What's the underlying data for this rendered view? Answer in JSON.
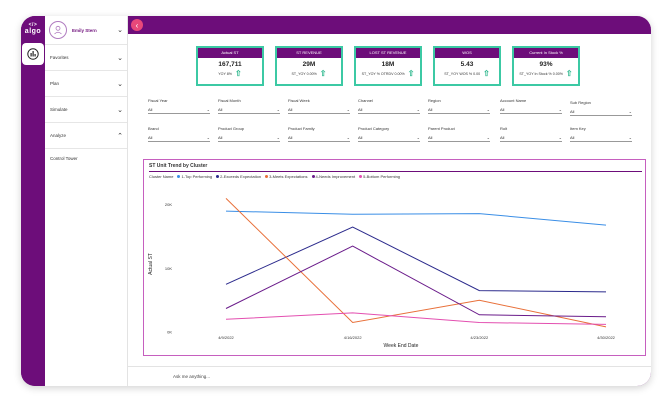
{
  "app": {
    "logo": "algo"
  },
  "user": {
    "name": "Emily Stern"
  },
  "sidebar": {
    "items": [
      {
        "label": "Favorites"
      },
      {
        "label": "Plan"
      },
      {
        "label": "Simulate"
      },
      {
        "label": "Analyze"
      }
    ],
    "sub_items": [
      {
        "label": "Control Tower"
      }
    ]
  },
  "kpis": [
    {
      "title": "Actual ST",
      "value": "167,711",
      "sub": "YOY 8%"
    },
    {
      "title": "ST REVENUE",
      "value": "29M",
      "sub": "ST_YOY 0.00%"
    },
    {
      "title": "LOST ST REVENUE",
      "value": "18M",
      "sub": "ST_YOY % OTRDV 0.00%"
    },
    {
      "title": "WOS",
      "value": "5.43",
      "sub": "ST_YOY WOS % 0.00"
    },
    {
      "title": "Current In Stock %",
      "value": "93%",
      "sub": "ST_YOY In Stock % 0.00%"
    }
  ],
  "filters": [
    {
      "label": "Fiscal Year",
      "value": "All"
    },
    {
      "label": "Fiscal Month",
      "value": "All"
    },
    {
      "label": "Fiscal Week",
      "value": "All"
    },
    {
      "label": "Channel",
      "value": "All"
    },
    {
      "label": "Region",
      "value": "All"
    },
    {
      "label": "Account Name",
      "value": "All"
    },
    {
      "label": "Sub Region",
      "value": "All"
    },
    {
      "label": "Brand",
      "value": "All"
    },
    {
      "label": "Product Group",
      "value": "All"
    },
    {
      "label": "Product Family",
      "value": "All"
    },
    {
      "label": "Product Category",
      "value": "All"
    },
    {
      "label": "Parent Product",
      "value": "All"
    },
    {
      "label": "Rolt",
      "value": "All"
    },
    {
      "label": "Item Key",
      "value": "All"
    }
  ],
  "ask": {
    "placeholder": "Ask me anything..."
  },
  "colors": {
    "accent": "#6d0d7a",
    "kpi_border": "#3cc9a4",
    "back_button": "#e8487a"
  },
  "chart_data": {
    "type": "line",
    "title": "ST Unit Trend by Cluster",
    "legend_title": "Cluster Name",
    "xlabel": "Week End Date",
    "ylabel": "Actual ST",
    "categories": [
      "4/9/2022",
      "4/16/2022",
      "4/23/2022",
      "4/30/2022"
    ],
    "yticks": [
      "0K",
      "10K",
      "20K"
    ],
    "ylim": [
      0,
      22000
    ],
    "series": [
      {
        "name": "1-Top Performing",
        "color": "#3a8ee6",
        "values": [
          19000,
          18500,
          18600,
          16800
        ]
      },
      {
        "name": "2-Exceeds Expectation",
        "color": "#2b2a8c",
        "values": [
          7500,
          16500,
          6500,
          6300
        ]
      },
      {
        "name": "3-Meets Expectations",
        "color": "#e8703a",
        "values": [
          21000,
          1500,
          5000,
          800
        ]
      },
      {
        "name": "4-Needs Improvement",
        "color": "#6a1b8a",
        "values": [
          3700,
          13500,
          2700,
          2400
        ]
      },
      {
        "name": "5-Bottom Performing",
        "color": "#e34fb0",
        "values": [
          2000,
          3000,
          1500,
          1200
        ]
      }
    ]
  }
}
